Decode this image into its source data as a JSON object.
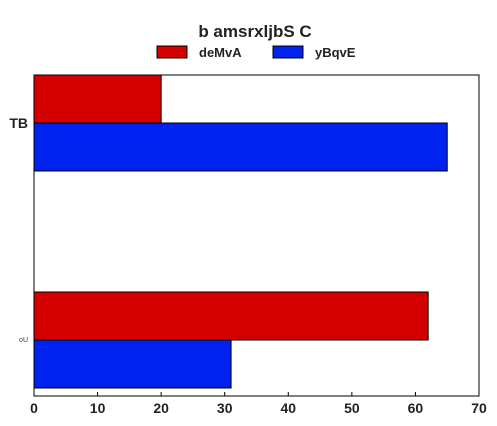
{
  "chart_data": {
    "type": "bar",
    "orientation": "horizontal",
    "title": "b amsrxljbS C",
    "xlabel": "",
    "ylabel": "",
    "categories": [
      "TB",
      "oU"
    ],
    "series": [
      {
        "name": "deMvA",
        "color": "#d40000",
        "values": [
          20,
          62
        ]
      },
      {
        "name": "yBqvE",
        "color": "#0022ee",
        "values": [
          65,
          31
        ]
      }
    ],
    "xlim": [
      0,
      70
    ],
    "xticks": [
      0,
      10,
      20,
      30,
      40,
      50,
      60,
      70
    ],
    "grid": false,
    "legend_position": "top-center"
  }
}
